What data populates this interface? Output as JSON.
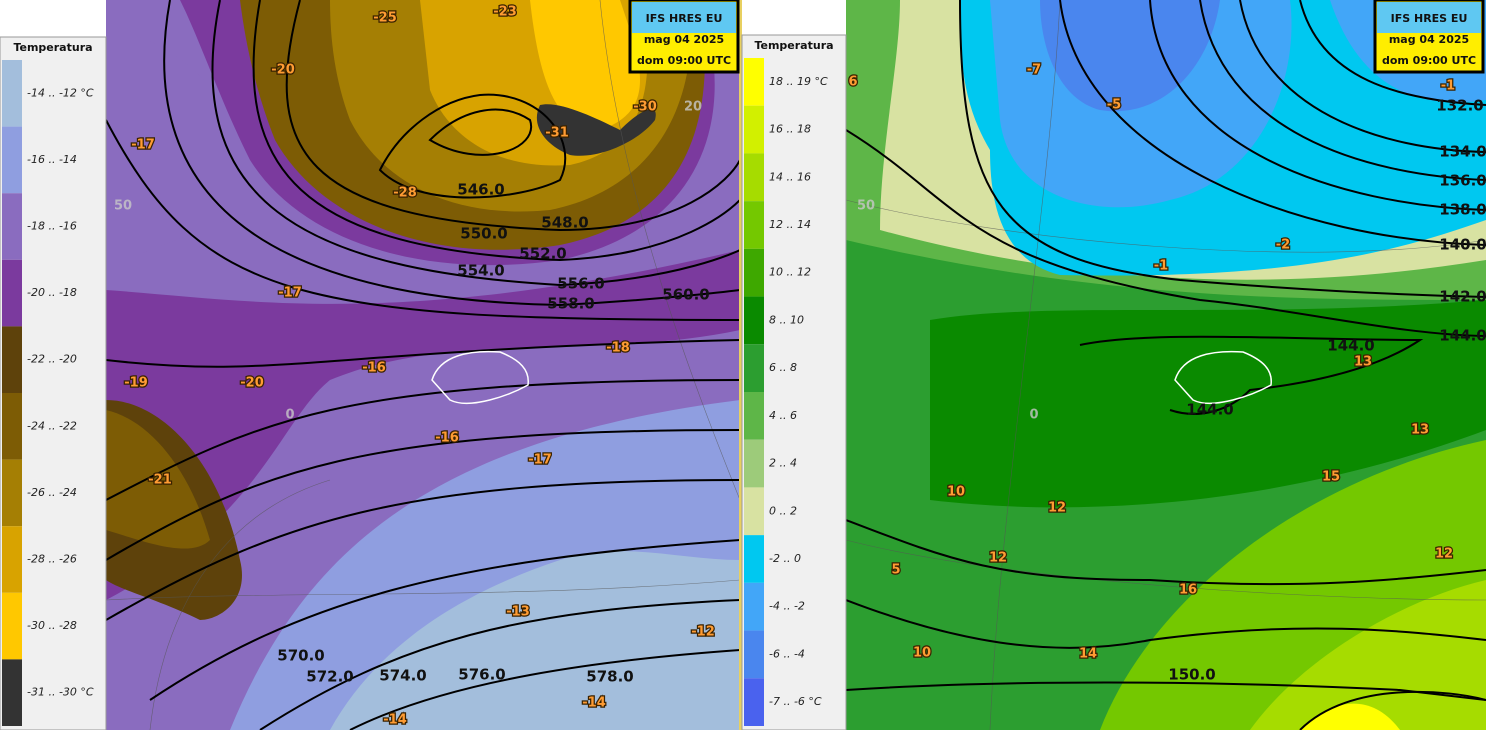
{
  "panels": [
    {
      "legend": {
        "title": "Temperatura",
        "items": [
          {
            "label": "-14 .. -12 °C",
            "color": "#a3bedc"
          },
          {
            "label": "-16 .. -14",
            "color": "#8f9ee0"
          },
          {
            "label": "-18 .. -16",
            "color": "#8a6cbf"
          },
          {
            "label": "-20 .. -18",
            "color": "#7b3a9e"
          },
          {
            "label": "-22 .. -20",
            "color": "#5e420b"
          },
          {
            "label": "-24 .. -22",
            "color": "#7d5c05"
          },
          {
            "label": "-26 .. -24",
            "color": "#a57f04"
          },
          {
            "label": "-28 .. -26",
            "color": "#d8a300"
          },
          {
            "label": "-30 .. -28",
            "color": "#ffc800"
          },
          {
            "label": "-31 .. -30 °C",
            "color": "#333333"
          }
        ]
      },
      "info": [
        "IFS HRES EU",
        "mag 04 2025",
        "dom 09:00 UTC"
      ],
      "contour_labels": [
        "546.0",
        "548.0",
        "550.0",
        "552.0",
        "554.0",
        "556.0",
        "558.0",
        "560.0",
        "570.0",
        "572.0",
        "574.0",
        "576.0",
        "578.0"
      ],
      "temperature_labels": [
        "-25",
        "-23",
        "-20",
        "-17",
        "-30",
        "-31",
        "-28",
        "-17",
        "-19",
        "-20",
        "-16",
        "-18",
        "-16",
        "-17",
        "-21",
        "-13",
        "-12",
        "-14",
        "-14"
      ],
      "grid_labels": [
        "50",
        "0",
        "20"
      ]
    },
    {
      "legend": {
        "title": "Temperatura",
        "items": [
          {
            "label": "18 .. 19 °C",
            "color": "#ffff00"
          },
          {
            "label": "16 .. 18",
            "color": "#d2f000"
          },
          {
            "label": "14 .. 16",
            "color": "#a6dc00"
          },
          {
            "label": "12 .. 14",
            "color": "#74c800"
          },
          {
            "label": "10 .. 12",
            "color": "#3ea800"
          },
          {
            "label": "8 .. 10",
            "color": "#0a8a00"
          },
          {
            "label": "6 .. 8",
            "color": "#2c9e30"
          },
          {
            "label": "4 .. 6",
            "color": "#5eb648"
          },
          {
            "label": "2 .. 4",
            "color": "#9dcb7a"
          },
          {
            "label": "0 .. 2",
            "color": "#d8e2a2"
          },
          {
            "label": "-2 .. 0",
            "color": "#00c8f0"
          },
          {
            "label": "-4 .. -2",
            "color": "#42a6f8"
          },
          {
            "label": "-6 .. -4",
            "color": "#4a86ee"
          },
          {
            "label": "-7 .. -6 °C",
            "color": "#4a62ee"
          }
        ]
      },
      "info": [
        "IFS HRES EU",
        "mag 04 2025",
        "dom 09:00 UTC"
      ],
      "contour_labels": [
        "132.0",
        "134.0",
        "136.0",
        "138.0",
        "140.0",
        "142.0",
        "144.0",
        "144.0",
        "144.0",
        "150.0"
      ],
      "temperature_labels": [
        "6",
        "-7",
        "-5",
        "-1",
        "-2",
        "-1",
        "13",
        "13",
        "15",
        "10",
        "12",
        "12",
        "5",
        "16",
        "10",
        "14",
        "12"
      ],
      "grid_labels": [
        "50",
        "0"
      ]
    }
  ]
}
